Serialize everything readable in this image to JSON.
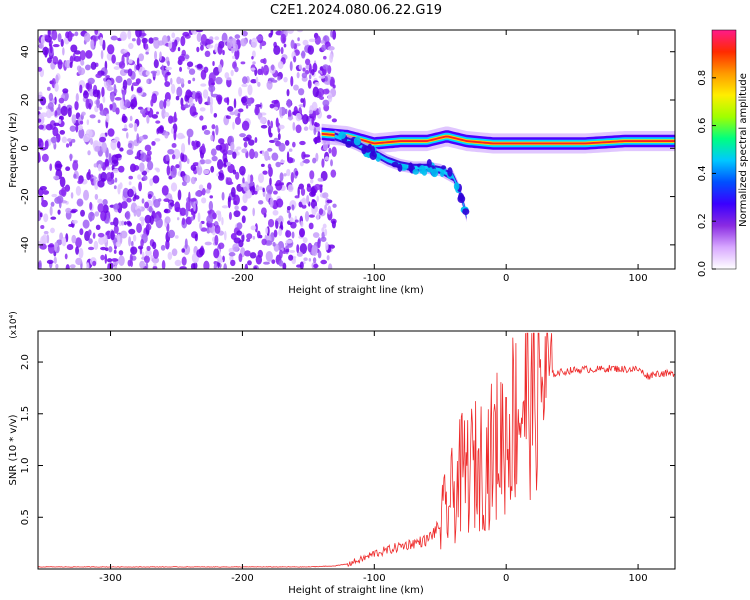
{
  "title": "C2E1.2024.080.06.22.G19",
  "chart_data": [
    {
      "type": "heatmap",
      "xlabel": "Height of straight line (km)",
      "ylabel": "Frequency (Hz)",
      "xlim": [
        -355,
        128
      ],
      "ylim": [
        -50,
        49
      ],
      "x_ticks": [
        -300,
        -200,
        -100,
        0,
        100
      ],
      "y_ticks": [
        -40,
        -20,
        0,
        20,
        40
      ],
      "colorbar": {
        "label": "Normalized spectral amplitude",
        "range": [
          0,
          1
        ],
        "ticks": [
          "0.0",
          "0.2",
          "0.4",
          "0.6",
          "0.8"
        ],
        "colors": [
          "#ffffff",
          "#d8a8ff",
          "#8a2be2",
          "#3a00ff",
          "#0050ff",
          "#00c8ff",
          "#00ff80",
          "#a0ff00",
          "#ffee00",
          "#ff9a00",
          "#ff2a00",
          "#ff1a8a"
        ]
      },
      "regions": [
        {
          "name": "noise",
          "x_range": [
            -355,
            -130
          ],
          "freq_range": [
            -50,
            49
          ],
          "amplitude": "0.1-0.3"
        },
        {
          "name": "signal-main",
          "x": [
            -140,
            -120,
            -100,
            -80,
            -60,
            -45,
            -30,
            -10,
            0,
            20,
            60,
            90,
            110,
            128
          ],
          "freq": [
            6,
            5,
            2,
            3,
            3,
            5,
            3,
            2,
            2,
            2,
            2,
            3,
            3,
            3
          ]
        },
        {
          "name": "signal-branch",
          "x": [
            -130,
            -115,
            -100,
            -90,
            -80,
            -70,
            -60,
            -50,
            -40,
            -35,
            -30
          ],
          "freq": [
            5,
            2,
            -2,
            -5,
            -7,
            -8,
            -8,
            -9,
            -12,
            -18,
            -28
          ]
        }
      ]
    },
    {
      "type": "line",
      "xlabel": "Height of straight line (km)",
      "ylabel": "SNR (10 * v/v)",
      "y_multiplier": "(x10⁴)",
      "xlim": [
        -355,
        128
      ],
      "ylim": [
        0,
        2.3
      ],
      "x_ticks": [
        -300,
        -200,
        -100,
        0,
        100
      ],
      "y_ticks": [
        "0.5",
        "1.0",
        "1.5",
        "2.0"
      ],
      "line_color": "#ee2a2a",
      "series": [
        {
          "x": [
            -355,
            -300,
            -250,
            -200,
            -150,
            -130,
            -120,
            -110,
            -100,
            -90,
            -80,
            -70,
            -60,
            -50,
            -45,
            -40,
            -35,
            -30,
            -25,
            -20,
            -15,
            -10,
            -5,
            0,
            5,
            10,
            15,
            20,
            25,
            30,
            35,
            40,
            50,
            60,
            70,
            80,
            90,
            100,
            108,
            112,
            120,
            128
          ],
          "y": [
            0.02,
            0.02,
            0.02,
            0.02,
            0.02,
            0.03,
            0.05,
            0.09,
            0.15,
            0.18,
            0.22,
            0.25,
            0.28,
            0.42,
            0.58,
            0.72,
            0.88,
            0.95,
            0.98,
            1.02,
            1.05,
            1.12,
            1.24,
            1.32,
            1.46,
            1.58,
            1.66,
            1.72,
            1.8,
            1.85,
            1.88,
            1.9,
            1.92,
            1.93,
            1.93,
            1.94,
            1.93,
            1.93,
            1.86,
            1.89,
            1.89,
            1.88
          ]
        }
      ]
    }
  ]
}
